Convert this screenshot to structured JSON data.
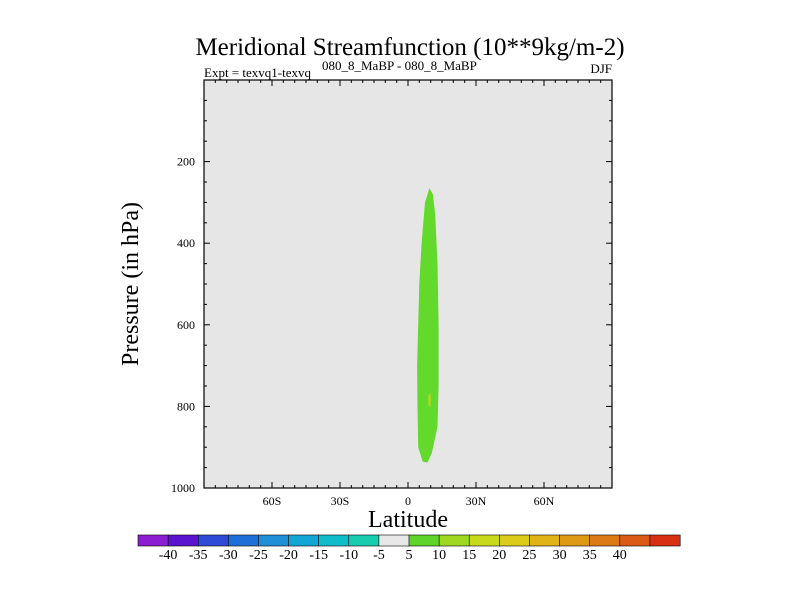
{
  "chart_data": {
    "type": "contour",
    "title": "Meridional Streamfunction (10**9kg/m-2)",
    "subtitle_left_a": "Expt = texvq1-texvq",
    "subtitle_left_b": "080_8_MaBP - 080_8_MaBP",
    "subtitle_right": "DJF",
    "xlabel": "Latitude",
    "ylabel": "Pressure (in hPa)",
    "x_range": [
      -90,
      90
    ],
    "y_range": [
      1000,
      0
    ],
    "x_ticks": [
      {
        "value": -60,
        "label": "60S"
      },
      {
        "value": -30,
        "label": "30S"
      },
      {
        "value": 0,
        "label": "0"
      },
      {
        "value": 30,
        "label": "30N"
      },
      {
        "value": 60,
        "label": "60N"
      }
    ],
    "y_ticks": [
      {
        "value": 200,
        "label": "200"
      },
      {
        "value": 400,
        "label": "400"
      },
      {
        "value": 600,
        "label": "600"
      },
      {
        "value": 800,
        "label": "800"
      },
      {
        "value": 1000,
        "label": "1000"
      }
    ],
    "background_color": "#e6e6e6",
    "feature": {
      "description_value": "5 to 10 positive cell",
      "color": "#63d92b",
      "outline": [
        [
          9.5,
          265
        ],
        [
          7.5,
          300
        ],
        [
          6.0,
          400
        ],
        [
          5.0,
          500
        ],
        [
          4.5,
          600
        ],
        [
          4.0,
          700
        ],
        [
          4.2,
          800
        ],
        [
          4.5,
          900
        ],
        [
          6.5,
          935
        ],
        [
          8.5,
          938
        ],
        [
          10.5,
          915
        ],
        [
          13.0,
          850
        ],
        [
          13.5,
          750
        ],
        [
          13.5,
          600
        ],
        [
          13.0,
          450
        ],
        [
          12.0,
          330
        ],
        [
          11.0,
          280
        ]
      ],
      "spot": {
        "lat": 9.5,
        "p": 785,
        "color": "#a4d92b"
      }
    },
    "colorbar": {
      "colors": [
        "#8b1ed1",
        "#5a14d0",
        "#2d4bd6",
        "#1f6fd8",
        "#1f8fd8",
        "#13a6d4",
        "#10bcc8",
        "#18ccb0",
        "#e8e8e8",
        "#5ed42a",
        "#9ed820",
        "#c8d81a",
        "#dccb18",
        "#e0b416",
        "#de9a14",
        "#dc7a16",
        "#da5a16",
        "#d83012"
      ],
      "labels": [
        "-40",
        "-35",
        "-30",
        "-25",
        "-20",
        "-15",
        "-10",
        "-5",
        "5",
        "10",
        "15",
        "20",
        "25",
        "30",
        "35",
        "40"
      ]
    }
  }
}
